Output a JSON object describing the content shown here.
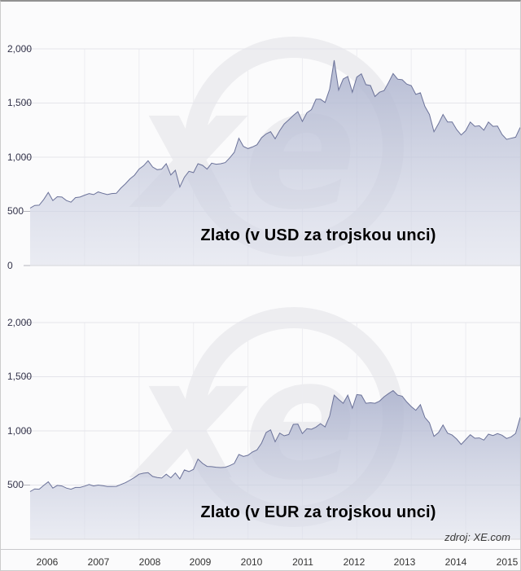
{
  "page": {
    "source_note": "zdroj: XE.com"
  },
  "watermark": {
    "label": "xe"
  },
  "colors": {
    "area_top": "#a9b0cc",
    "area_bottom": "#dcdfeb",
    "line": "#6b7299",
    "grid": "#e4e4ea",
    "grid_v": "#ededf1",
    "watermark": "#ededf0",
    "text": "#333333"
  },
  "xaxis": {
    "years": [
      "2006",
      "2007",
      "2008",
      "2009",
      "2010",
      "2011",
      "2012",
      "2013",
      "2014",
      "2015"
    ]
  },
  "chart_data": [
    {
      "type": "area",
      "title": "Zlato (v USD za trojskou unci)",
      "currency": "USD",
      "unit": "za trojskou unci",
      "ylim": [
        0,
        2000
      ],
      "ytick_step": 500,
      "yticks": [
        "2,000",
        "1,500",
        "1,000",
        "500",
        "0"
      ],
      "x_start_year": 2006,
      "x_end_year": 2015,
      "x_interval": "monthly",
      "values": [
        530,
        555,
        557,
        610,
        675,
        600,
        635,
        632,
        600,
        585,
        627,
        632,
        650,
        665,
        655,
        680,
        667,
        655,
        665,
        667,
        715,
        755,
        800,
        834,
        890,
        922,
        968,
        910,
        885,
        890,
        940,
        835,
        880,
        725,
        815,
        870,
        858,
        940,
        925,
        890,
        945,
        935,
        940,
        950,
        995,
        1045,
        1175,
        1100,
        1080,
        1095,
        1115,
        1180,
        1215,
        1235,
        1170,
        1245,
        1307,
        1345,
        1385,
        1420,
        1330,
        1410,
        1440,
        1535,
        1535,
        1505,
        1628,
        1895,
        1620,
        1722,
        1745,
        1600,
        1740,
        1770,
        1670,
        1662,
        1560,
        1600,
        1615,
        1690,
        1772,
        1720,
        1715,
        1675,
        1660,
        1580,
        1595,
        1470,
        1395,
        1235,
        1310,
        1395,
        1325,
        1325,
        1255,
        1205,
        1245,
        1325,
        1285,
        1290,
        1250,
        1325,
        1285,
        1287,
        1210,
        1165,
        1175,
        1185,
        1275
      ]
    },
    {
      "type": "area",
      "title": "Zlato (v EUR za trojskou unci)",
      "currency": "EUR",
      "unit": "za trojskou unci",
      "ylim": [
        0,
        2000
      ],
      "ytick_step": 500,
      "yticks": [
        "2,000",
        "1,500",
        "1,000",
        "500"
      ],
      "x_start_year": 2006,
      "x_end_year": 2015,
      "x_interval": "monthly",
      "values": [
        440,
        465,
        462,
        497,
        530,
        472,
        497,
        492,
        472,
        462,
        478,
        478,
        490,
        505,
        492,
        500,
        495,
        487,
        487,
        488,
        505,
        522,
        545,
        570,
        600,
        610,
        614,
        580,
        570,
        565,
        600,
        567,
        612,
        557,
        640,
        625,
        645,
        740,
        700,
        672,
        670,
        665,
        662,
        665,
        680,
        700,
        783,
        765,
        775,
        805,
        825,
        887,
        985,
        1010,
        900,
        980,
        955,
        967,
        1060,
        1063,
        975,
        1020,
        1015,
        1035,
        1067,
        1037,
        1135,
        1330,
        1290,
        1255,
        1330,
        1210,
        1335,
        1330,
        1255,
        1260,
        1255,
        1275,
        1315,
        1345,
        1372,
        1330,
        1320,
        1268,
        1225,
        1190,
        1242,
        1125,
        1075,
        950,
        985,
        1055,
        980,
        962,
        925,
        875,
        920,
        965,
        932,
        935,
        915,
        970,
        957,
        975,
        960,
        930,
        945,
        977,
        1125
      ]
    }
  ]
}
